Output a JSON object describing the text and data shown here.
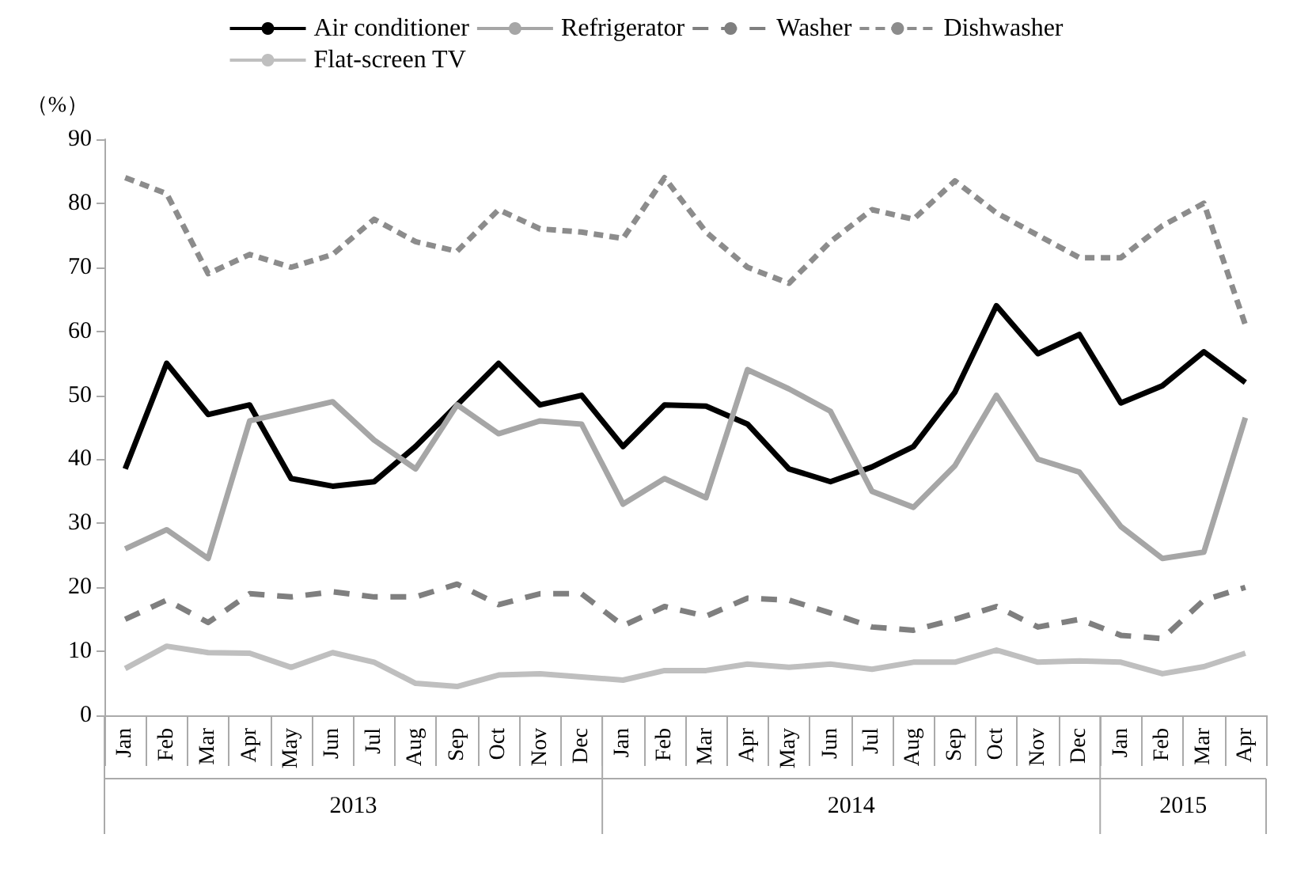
{
  "chart_data": {
    "type": "line",
    "ylabel": "（%）",
    "categories": [
      "Jan",
      "Feb",
      "Mar",
      "Apr",
      "May",
      "Jun",
      "Jul",
      "Aug",
      "Sep",
      "Oct",
      "Nov",
      "Dec",
      "Jan",
      "Feb",
      "Mar",
      "Apr",
      "May",
      "Jun",
      "Jul",
      "Aug",
      "Sep",
      "Oct",
      "Nov",
      "Dec",
      "Jan",
      "Feb",
      "Mar",
      "Apr"
    ],
    "annotations": [
      "2013",
      "2014",
      "2015"
    ],
    "ylim": [
      0,
      90
    ],
    "yticks": [
      0,
      10,
      20,
      30,
      40,
      50,
      60,
      70,
      80,
      90
    ],
    "grid": false,
    "legend": "top",
    "marker": "none",
    "series": [
      {
        "name": "Air conditioner",
        "color": "#000000",
        "line_style": "solid",
        "values": [
          38.5,
          55,
          47,
          48.5,
          37,
          35.8,
          36.5,
          42,
          48.5,
          55,
          48.5,
          50,
          42,
          48.5,
          48.3,
          45.5,
          38.5,
          36.5,
          38.8,
          42,
          50.5,
          64,
          56.5,
          59.5,
          48.8,
          51.5,
          56.8,
          52
        ]
      },
      {
        "name": "Refrigerator",
        "color": "#a6a6a6",
        "line_style": "solid",
        "values": [
          26,
          29,
          24.5,
          46,
          47.5,
          49,
          43,
          38.5,
          48.5,
          44,
          46,
          45.5,
          33,
          37,
          34,
          54,
          51,
          47.5,
          35,
          32.5,
          39,
          50,
          40,
          38,
          29.5,
          24.5,
          25.5,
          46.5
        ]
      },
      {
        "name": "Washer",
        "color": "#7f7f7f",
        "line_style": "dashed",
        "values": [
          15,
          18,
          14.5,
          19,
          18.5,
          19.3,
          18.5,
          18.5,
          20.5,
          17.3,
          19,
          19,
          14,
          17,
          15.5,
          18.3,
          18,
          16,
          13.8,
          13.3,
          15,
          17,
          13.8,
          15,
          12.5,
          12,
          18,
          20
        ]
      },
      {
        "name": "Dishwasher",
        "color": "#8c8c8c",
        "line_style": "dotted",
        "values": [
          84,
          81.5,
          69,
          72,
          70,
          72,
          77.5,
          74,
          72.5,
          79,
          76,
          75.5,
          74.5,
          84,
          75.5,
          70,
          67.5,
          74,
          79,
          77.5,
          83.5,
          78.5,
          75,
          71.5,
          71.5,
          76.5,
          80,
          61
        ]
      },
      {
        "name": "Flat-screen TV",
        "color": "#bfbfbf",
        "line_style": "solid",
        "values": [
          7.3,
          10.8,
          9.8,
          9.7,
          7.5,
          9.8,
          8.3,
          5,
          4.5,
          6.3,
          6.5,
          6,
          5.5,
          7,
          7,
          8,
          7.5,
          8,
          7.2,
          8.3,
          8.3,
          10.2,
          8.3,
          8.5,
          8.3,
          6.5,
          7.6,
          9.7
        ]
      }
    ]
  }
}
